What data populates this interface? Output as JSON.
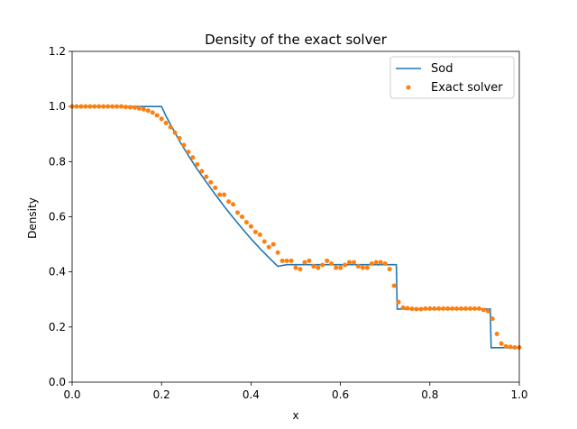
{
  "chart_data": {
    "type": "line",
    "title": "Density of the exact solver",
    "xlabel": "x",
    "ylabel": "Density",
    "xlim": [
      0,
      1
    ],
    "ylim": [
      0,
      1.2
    ],
    "xticks": [
      "0.0",
      "0.2",
      "0.4",
      "0.6",
      "0.8",
      "1.0"
    ],
    "yticks": [
      "0.0",
      "0.2",
      "0.4",
      "0.6",
      "0.8",
      "1.0",
      "1.2"
    ],
    "grid": false,
    "legend_position": "top-right",
    "series": [
      {
        "name": "Sod",
        "style": "line",
        "color": "#1f77b4",
        "x": [
          0.0,
          0.2,
          0.21,
          0.22,
          0.23,
          0.24,
          0.26,
          0.28,
          0.3,
          0.32,
          0.34,
          0.36,
          0.38,
          0.4,
          0.42,
          0.44,
          0.46,
          0.48,
          0.5,
          0.6,
          0.7,
          0.725,
          0.727,
          0.8,
          0.9,
          0.935,
          0.937,
          1.0
        ],
        "y": [
          1.0,
          1.0,
          0.965,
          0.935,
          0.905,
          0.875,
          0.822,
          0.772,
          0.726,
          0.681,
          0.638,
          0.597,
          0.558,
          0.52,
          0.485,
          0.452,
          0.42,
          0.426,
          0.426,
          0.426,
          0.426,
          0.426,
          0.265,
          0.265,
          0.265,
          0.265,
          0.125,
          0.125
        ]
      },
      {
        "name": "Exact solver",
        "style": "markers",
        "color": "#ff7f0e",
        "x": [
          0.0,
          0.01,
          0.02,
          0.03,
          0.04,
          0.05,
          0.06,
          0.07,
          0.08,
          0.09,
          0.1,
          0.11,
          0.12,
          0.13,
          0.14,
          0.15,
          0.16,
          0.17,
          0.18,
          0.19,
          0.2,
          0.21,
          0.22,
          0.23,
          0.24,
          0.25,
          0.26,
          0.27,
          0.28,
          0.29,
          0.3,
          0.31,
          0.32,
          0.33,
          0.34,
          0.35,
          0.36,
          0.37,
          0.38,
          0.39,
          0.4,
          0.41,
          0.42,
          0.43,
          0.44,
          0.45,
          0.46,
          0.47,
          0.48,
          0.49,
          0.5,
          0.51,
          0.52,
          0.53,
          0.54,
          0.55,
          0.56,
          0.57,
          0.58,
          0.59,
          0.6,
          0.61,
          0.62,
          0.63,
          0.64,
          0.65,
          0.66,
          0.67,
          0.68,
          0.69,
          0.7,
          0.71,
          0.72,
          0.73,
          0.74,
          0.75,
          0.76,
          0.77,
          0.78,
          0.79,
          0.8,
          0.81,
          0.82,
          0.83,
          0.84,
          0.85,
          0.86,
          0.87,
          0.88,
          0.89,
          0.9,
          0.91,
          0.92,
          0.93,
          0.94,
          0.95,
          0.96,
          0.97,
          0.98,
          0.99,
          1.0
        ],
        "y": [
          1.0,
          1.0,
          1.0,
          1.0,
          1.0,
          1.0,
          1.0,
          1.0,
          1.0,
          1.0,
          1.0,
          1.0,
          0.998,
          0.997,
          0.996,
          0.993,
          0.99,
          0.985,
          0.978,
          0.968,
          0.955,
          0.94,
          0.925,
          0.905,
          0.885,
          0.86,
          0.835,
          0.815,
          0.79,
          0.765,
          0.745,
          0.725,
          0.705,
          0.68,
          0.68,
          0.655,
          0.645,
          0.615,
          0.6,
          0.58,
          0.565,
          0.545,
          0.535,
          0.51,
          0.49,
          0.5,
          0.47,
          0.44,
          0.44,
          0.44,
          0.415,
          0.41,
          0.435,
          0.44,
          0.42,
          0.415,
          0.425,
          0.44,
          0.43,
          0.415,
          0.415,
          0.425,
          0.435,
          0.435,
          0.42,
          0.415,
          0.415,
          0.43,
          0.435,
          0.435,
          0.43,
          0.41,
          0.35,
          0.29,
          0.27,
          0.268,
          0.266,
          0.265,
          0.265,
          0.267,
          0.267,
          0.267,
          0.267,
          0.267,
          0.267,
          0.267,
          0.267,
          0.267,
          0.267,
          0.267,
          0.267,
          0.267,
          0.262,
          0.258,
          0.23,
          0.175,
          0.14,
          0.13,
          0.128,
          0.126,
          0.126
        ]
      }
    ]
  }
}
